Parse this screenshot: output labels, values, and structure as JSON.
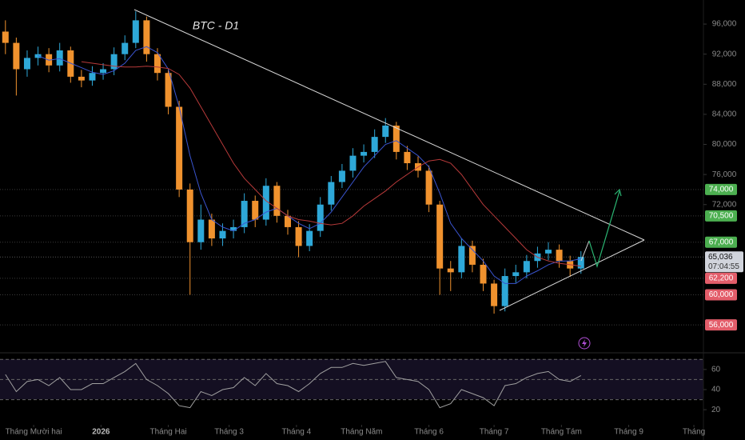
{
  "chart_data": {
    "type": "candlestick",
    "title": "BTC - D1",
    "x": [
      -13,
      -8,
      -3,
      2,
      7,
      12,
      17,
      22,
      27,
      32,
      37,
      42,
      47,
      52,
      57,
      62,
      67,
      72,
      77,
      82,
      87,
      92,
      97,
      102,
      107,
      112,
      117,
      122,
      127,
      132,
      137,
      142,
      147,
      152,
      157,
      162,
      167,
      172,
      177,
      182,
      187,
      192,
      197,
      202,
      207,
      212,
      217,
      222,
      227,
      232,
      237,
      242,
      247,
      252
    ],
    "open": [
      95000,
      93500,
      90000,
      91500,
      92000,
      90500,
      92500,
      89000,
      88500,
      89500,
      90000,
      92000,
      93500,
      96500,
      92000,
      89500,
      85000,
      74000,
      67000,
      70000,
      67500,
      68500,
      69000,
      72500,
      70000,
      74500,
      70500,
      69000,
      66500,
      68500,
      72000,
      75000,
      76500,
      78500,
      79000,
      81000,
      82500,
      79000,
      77500,
      76500,
      72000,
      63500,
      63000,
      66500,
      64000,
      61500,
      58500,
      62500,
      63000,
      64500,
      65500,
      66000,
      64500,
      63500
    ],
    "high": [
      96500,
      94200,
      92500,
      93000,
      92800,
      93500,
      93000,
      89900,
      90400,
      90800,
      92900,
      94500,
      97700,
      97000,
      92800,
      90000,
      85800,
      74800,
      72000,
      70800,
      69500,
      70000,
      73500,
      73200,
      75500,
      75000,
      71300,
      69800,
      69400,
      73000,
      75800,
      77400,
      79500,
      80000,
      82000,
      83500,
      83000,
      79800,
      78400,
      77200,
      72500,
      64500,
      67500,
      67200,
      64800,
      62000,
      63500,
      64000,
      65300,
      66400,
      67000,
      66700,
      65200,
      65800
    ],
    "low": [
      92000,
      86500,
      89000,
      90500,
      89600,
      89700,
      88200,
      87600,
      87800,
      88600,
      89200,
      91200,
      92800,
      91000,
      88500,
      84000,
      73000,
      60000,
      66000,
      66500,
      66500,
      67500,
      68200,
      69000,
      69200,
      69600,
      68000,
      65000,
      65800,
      67700,
      71200,
      74200,
      75600,
      77600,
      78200,
      80200,
      78000,
      76600,
      75600,
      71000,
      60000,
      60500,
      62200,
      63000,
      60500,
      57500,
      57800,
      61600,
      62200,
      63600,
      64600,
      63600,
      62400,
      62800
    ],
    "close": [
      93500,
      90000,
      91500,
      92000,
      90500,
      92500,
      89000,
      88500,
      89500,
      90000,
      92000,
      93500,
      96500,
      92000,
      89500,
      85000,
      74000,
      67000,
      70000,
      67500,
      68500,
      69000,
      72500,
      70000,
      74500,
      70500,
      69000,
      66500,
      68500,
      72000,
      75000,
      76500,
      78500,
      79000,
      81000,
      82500,
      79000,
      77500,
      76500,
      72000,
      63500,
      63000,
      66500,
      64000,
      61500,
      58500,
      62500,
      63000,
      64500,
      65500,
      66000,
      64500,
      63500,
      65036
    ],
    "up_color": "#2ea8d8",
    "down_color": "#f0922e",
    "series": [
      {
        "color": "#3a55d0",
        "values": [
          null,
          null,
          null,
          91800,
          91200,
          91400,
          90800,
          90200,
          89600,
          89300,
          89800,
          90800,
          92500,
          93000,
          92200,
          90000,
          85000,
          78500,
          73500,
          70000,
          69000,
          68500,
          69500,
          70000,
          71000,
          71500,
          70500,
          69500,
          68800,
          69500,
          71000,
          73000,
          75000,
          77000,
          78500,
          80000,
          80500,
          79500,
          78500,
          77000,
          73500,
          69500,
          67500,
          66000,
          64500,
          62500,
          61500,
          61500,
          62500,
          63200,
          64000,
          64500,
          64500,
          64800
        ]
      },
      {
        "color": "#b83a3a",
        "values": [
          null,
          null,
          null,
          null,
          null,
          null,
          null,
          91000,
          90800,
          90600,
          90400,
          90300,
          90300,
          90400,
          90300,
          90100,
          89300,
          87500,
          85000,
          82500,
          80000,
          77500,
          75500,
          74000,
          72500,
          71500,
          70500,
          70000,
          69800,
          69500,
          69300,
          69500,
          70500,
          71800,
          72800,
          73800,
          75000,
          76000,
          77000,
          77800,
          78000,
          77500,
          76000,
          74000,
          72000,
          70500,
          69000,
          67500,
          66000,
          65000,
          64500,
          64200,
          64000,
          63800
        ]
      }
    ],
    "xlim": [
      -15.5,
      308.4
    ],
    "xticks": [
      {
        "value": 0,
        "label": "Tháng Mười hai"
      },
      {
        "value": 31,
        "label": "2026"
      },
      {
        "value": 62,
        "label": "Tháng Hai"
      },
      {
        "value": 90,
        "label": "Tháng 3"
      },
      {
        "value": 121,
        "label": "Tháng 4"
      },
      {
        "value": 151,
        "label": "Tháng Năm"
      },
      {
        "value": 182,
        "label": "Tháng 6"
      },
      {
        "value": 212,
        "label": "Tháng 7"
      },
      {
        "value": 243,
        "label": "Tháng Tám"
      },
      {
        "value": 274,
        "label": "Tháng 9"
      },
      {
        "value": 304,
        "label": "Tháng"
      }
    ],
    "ylim": [
      52400,
      99200
    ],
    "yticks": [
      {
        "value": 96000,
        "label": "96,000"
      },
      {
        "value": 92000,
        "label": "92,000"
      },
      {
        "value": 88000,
        "label": "88,000"
      },
      {
        "value": 84000,
        "label": "84,000"
      },
      {
        "value": 80000,
        "label": "80,000"
      },
      {
        "value": 76000,
        "label": "76,000"
      },
      {
        "value": 72000,
        "label": "72,000"
      }
    ],
    "levels": [
      {
        "value": 74000,
        "label": "74,000",
        "color": "#4caf50"
      },
      {
        "value": 70500,
        "label": "70,500",
        "color": "#4caf50"
      },
      {
        "value": 67000,
        "label": "67,000",
        "color": "#4caf50"
      },
      {
        "value": 62200,
        "label": "62,200",
        "color": "#e35d6a"
      },
      {
        "value": 60000,
        "label": "60,000",
        "color": "#e35d6a"
      },
      {
        "value": 56000,
        "label": "56,000",
        "color": "#e35d6a"
      }
    ],
    "last_price": {
      "value": 65036,
      "label": "65,036",
      "countdown": "07:04:55"
    },
    "rsi": {
      "color": "#a0a0a0",
      "values": [
        55,
        38,
        48,
        50,
        44,
        52,
        40,
        40,
        46,
        46,
        52,
        58,
        66,
        50,
        44,
        36,
        24,
        22,
        38,
        34,
        40,
        42,
        52,
        44,
        56,
        46,
        44,
        38,
        46,
        56,
        62,
        62,
        66,
        64,
        66,
        68,
        52,
        50,
        48,
        40,
        22,
        26,
        40,
        36,
        32,
        24,
        44,
        46,
        52,
        56,
        58,
        50,
        48,
        54
      ],
      "ylim": [
        5,
        75
      ],
      "yticks": [
        60,
        40,
        20
      ],
      "levels": [
        70,
        50,
        30
      ]
    }
  }
}
